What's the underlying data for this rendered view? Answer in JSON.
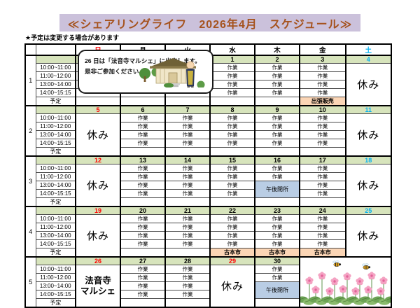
{
  "title": "≪シェアリングライフ　2026年4月　スケジュール≫",
  "note": "★予定は変更する場合があります",
  "colors": {
    "title_bg": "#cbc1db",
    "title_text": "#a5521d",
    "green": "#d7e4bc",
    "orange": "#fbd5b5",
    "blue": "#b9cde4",
    "sunday_red": "#ff0000",
    "saturday_cyan": "#00b0f0"
  },
  "day_headers": [
    {
      "label": "日",
      "color": "#ff0000"
    },
    {
      "label": "月",
      "color": "#000000"
    },
    {
      "label": "火",
      "color": "#000000"
    },
    {
      "label": "水",
      "color": "#000000"
    },
    {
      "label": "木",
      "color": "#000000"
    },
    {
      "label": "金",
      "color": "#000000"
    },
    {
      "label": "土",
      "color": "#00b0f0"
    }
  ],
  "time_slots": [
    "10:00~11:00",
    "11:00~12:00",
    "13:00~14:00",
    "14:00~15:15"
  ],
  "legend": {
    "work": "作業",
    "rest": "休み",
    "plan": "予定",
    "afternoon_closed": "午後閉所",
    "marche_line1": "法音寺",
    "marche_line2": "マルシェ"
  },
  "bubble": {
    "line1": "26 日は「法音寺マルシェ」に出店します。",
    "line2": "是非ご参加ください。",
    "illustration": "temple-and-monk"
  },
  "weeks": [
    {
      "num": "1",
      "days": [
        {
          "date": "",
          "kind": "empty"
        },
        {
          "date": "",
          "kind": "empty"
        },
        {
          "date": "",
          "kind": "empty"
        },
        {
          "date": "1",
          "kind": "work"
        },
        {
          "date": "2",
          "kind": "work"
        },
        {
          "date": "3",
          "kind": "work",
          "plan": "出張販売"
        },
        {
          "date": "4",
          "date_color": "#00b0f0",
          "kind": "rest"
        }
      ]
    },
    {
      "num": "2",
      "days": [
        {
          "date": "5",
          "date_color": "#ff0000",
          "kind": "rest"
        },
        {
          "date": "6",
          "kind": "work"
        },
        {
          "date": "7",
          "kind": "work"
        },
        {
          "date": "8",
          "kind": "work"
        },
        {
          "date": "9",
          "kind": "work"
        },
        {
          "date": "10",
          "kind": "work"
        },
        {
          "date": "11",
          "date_color": "#00b0f0",
          "kind": "rest"
        }
      ]
    },
    {
      "num": "3",
      "days": [
        {
          "date": "12",
          "date_color": "#ff0000",
          "kind": "rest"
        },
        {
          "date": "13",
          "kind": "work"
        },
        {
          "date": "14",
          "kind": "work"
        },
        {
          "date": "15",
          "kind": "work"
        },
        {
          "date": "16",
          "kind": "half"
        },
        {
          "date": "17",
          "kind": "work"
        },
        {
          "date": "18",
          "date_color": "#00b0f0",
          "kind": "rest"
        }
      ]
    },
    {
      "num": "4",
      "days": [
        {
          "date": "19",
          "date_color": "#ff0000",
          "kind": "rest"
        },
        {
          "date": "20",
          "kind": "work"
        },
        {
          "date": "21",
          "kind": "work"
        },
        {
          "date": "22",
          "kind": "work",
          "plan": "古本市"
        },
        {
          "date": "23",
          "kind": "work",
          "plan": "古本市"
        },
        {
          "date": "24",
          "kind": "work",
          "plan": "古本市"
        },
        {
          "date": "25",
          "date_color": "#00b0f0",
          "kind": "rest"
        }
      ]
    },
    {
      "num": "5",
      "days": [
        {
          "date": "26",
          "date_color": "#ff0000",
          "kind": "marche"
        },
        {
          "date": "27",
          "kind": "work"
        },
        {
          "date": "28",
          "kind": "work"
        },
        {
          "date": "29",
          "date_color": "#ff0000",
          "kind": "rest"
        },
        {
          "date": "30",
          "kind": "half"
        },
        {
          "kind": "flowers"
        },
        {
          "kind": "skip"
        }
      ]
    }
  ]
}
